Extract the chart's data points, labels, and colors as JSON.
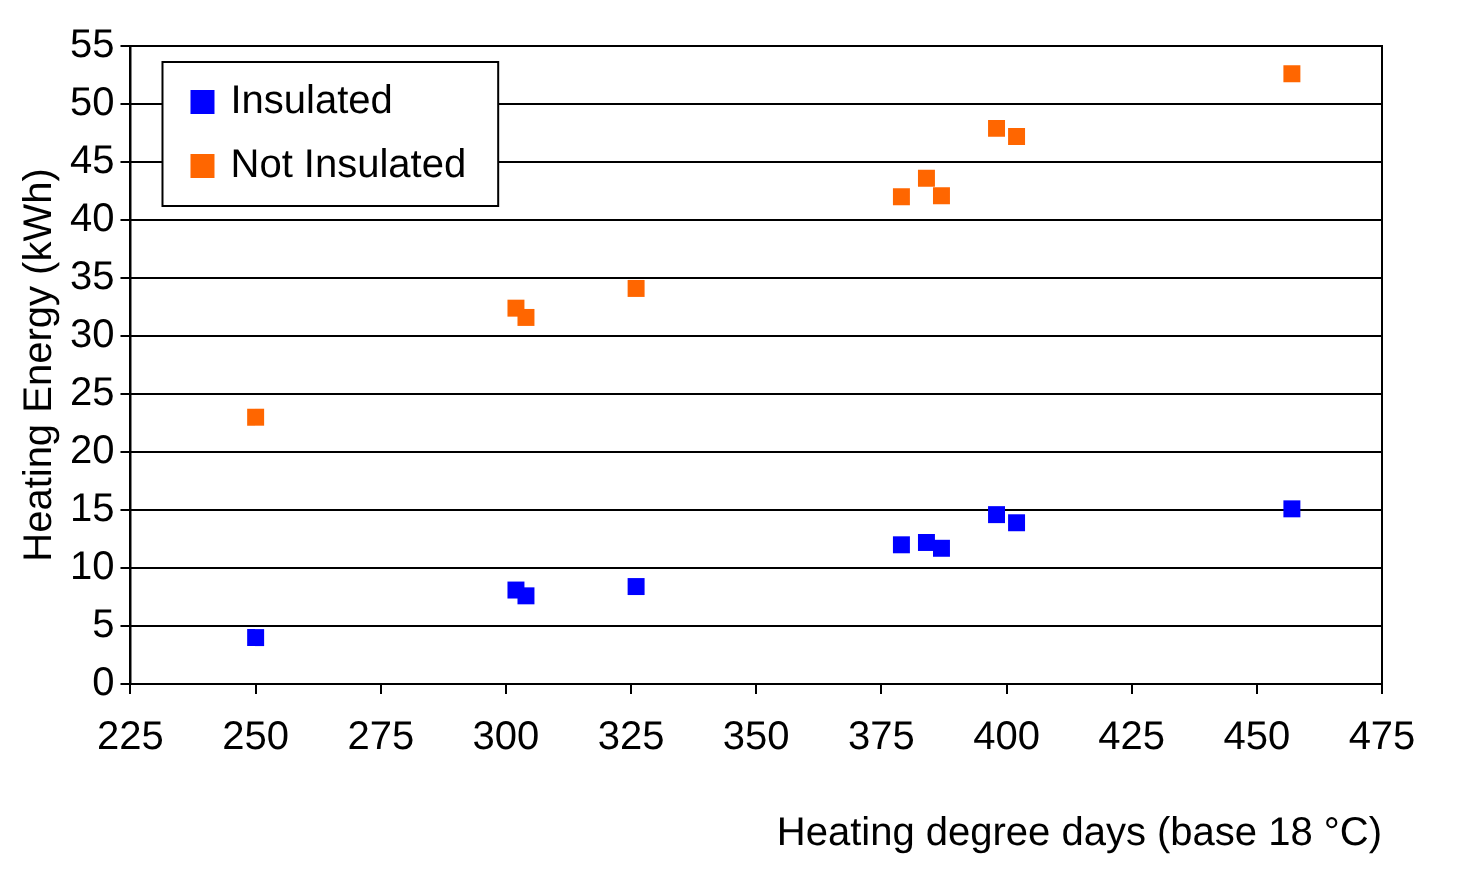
{
  "chart_data": {
    "type": "scatter",
    "xlabel": "Heating degree days (base 18 °C)",
    "ylabel": "Heating Energy (kWh)",
    "x": [
      250,
      302,
      304,
      326,
      379,
      384,
      387,
      398,
      402,
      457
    ],
    "series": [
      {
        "name": "Insulated",
        "color": "#0000ff",
        "values": [
          4,
          8.1,
          7.6,
          8.4,
          12,
          12.2,
          11.7,
          14.6,
          13.9,
          15.1
        ]
      },
      {
        "name": "Not Insulated",
        "color": "#ff6600",
        "values": [
          23,
          32.4,
          31.6,
          34.1,
          42,
          43.6,
          42.1,
          47.9,
          47.2,
          52.6
        ]
      }
    ],
    "xlim": [
      225,
      475
    ],
    "xticks": [
      225,
      250,
      275,
      300,
      325,
      350,
      375,
      400,
      425,
      450,
      475
    ],
    "ylim": [
      0,
      55
    ],
    "yticks": [
      0,
      5,
      10,
      15,
      20,
      25,
      30,
      35,
      40,
      45,
      50,
      55
    ],
    "grid": "y",
    "legend": "top left",
    "marker": "square"
  }
}
